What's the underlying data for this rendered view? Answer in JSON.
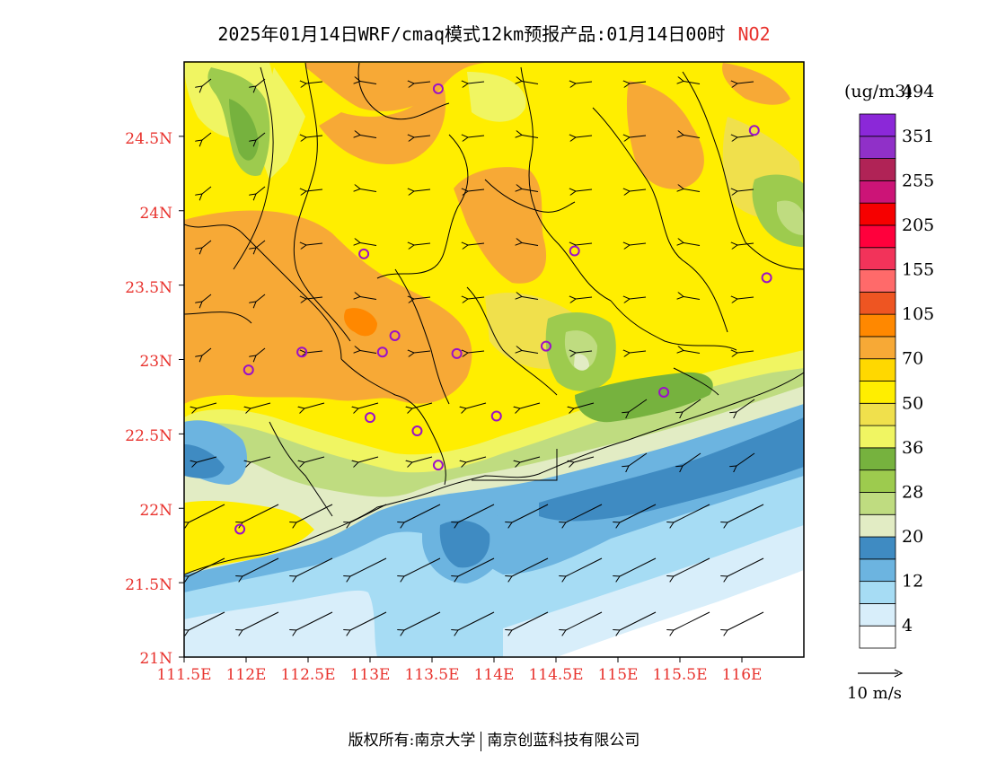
{
  "title": {
    "text": "2025年01月14日WRF/cmaq模式12km预报产品:01月14日00时",
    "species": "NO2"
  },
  "map": {
    "lat_labels": [
      "24.5N",
      "24N",
      "23.5N",
      "23N",
      "22.5N",
      "22N",
      "21.5N",
      "21N"
    ],
    "lon_labels": [
      "111.5E",
      "112E",
      "112.5E",
      "113E",
      "113.5E",
      "114E",
      "114.5E",
      "115E",
      "115.5E",
      "116E"
    ],
    "lat_ticks": [
      24.5,
      24.0,
      23.5,
      23.0,
      22.5,
      22.0,
      21.5,
      21.0
    ],
    "lon_ticks": [
      111.5,
      112.0,
      112.5,
      113.0,
      113.5,
      114.0,
      114.5,
      115.0,
      115.5,
      116.0
    ],
    "lat_range": [
      21.0,
      25.0
    ],
    "lon_range": [
      111.5,
      116.5
    ],
    "station_markers": [
      {
        "lon": 113.55,
        "lat": 24.82
      },
      {
        "lon": 116.1,
        "lat": 24.54
      },
      {
        "lon": 114.65,
        "lat": 23.73
      },
      {
        "lon": 112.95,
        "lat": 23.71
      },
      {
        "lon": 116.2,
        "lat": 23.55
      },
      {
        "lon": 113.2,
        "lat": 23.16
      },
      {
        "lon": 113.1,
        "lat": 23.05
      },
      {
        "lon": 112.45,
        "lat": 23.05
      },
      {
        "lon": 113.7,
        "lat": 23.04
      },
      {
        "lon": 114.42,
        "lat": 23.09
      },
      {
        "lon": 112.02,
        "lat": 22.93
      },
      {
        "lon": 115.37,
        "lat": 22.78
      },
      {
        "lon": 113.0,
        "lat": 22.61
      },
      {
        "lon": 113.38,
        "lat": 22.52
      },
      {
        "lon": 114.02,
        "lat": 22.62
      },
      {
        "lon": 113.55,
        "lat": 22.29
      },
      {
        "lon": 111.95,
        "lat": 21.86
      }
    ]
  },
  "legend": {
    "units": "(ug/m3)",
    "colors": [
      "#ffffff",
      "#d8eefa",
      "#a6dcf4",
      "#6cb4e0",
      "#3f8bc2",
      "#e2ecc4",
      "#bfdc80",
      "#9dcb4e",
      "#76b23e",
      "#f0f562",
      "#f0e04c",
      "#ffee00",
      "#ffd800",
      "#f7a936",
      "#ff8800",
      "#ee5522",
      "#ff6a6a",
      "#f2335a",
      "#ff003c",
      "#f60000",
      "#cc1477",
      "#b02356",
      "#9030c8",
      "#8b28d8"
    ],
    "labels": [
      "4",
      "12",
      "20",
      "28",
      "36",
      "50",
      "70",
      "105",
      "155",
      "205",
      "255",
      "351",
      "494"
    ],
    "wind_scale_label": "10 m/s"
  },
  "copyright": {
    "prefix": "版权所有:",
    "owner1": "南京大学",
    "owner2": "南京创蓝科技有限公司"
  }
}
